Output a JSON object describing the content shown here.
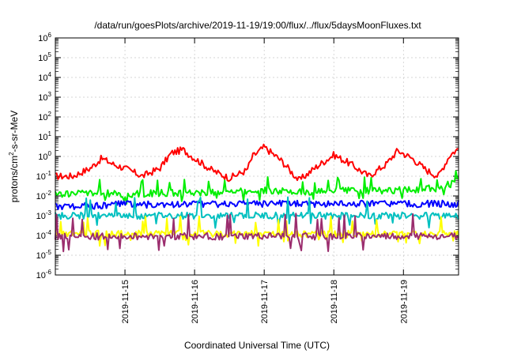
{
  "chart_data": {
    "type": "line",
    "title": "/data/run/goesPlots/archive/2019-11-19/19:00/flux/../flux/5daysMoonFluxes.txt",
    "xlabel": "Coordinated Universal Time (UTC)",
    "ylabel": "protons/cm2-s-sr-MeV",
    "ylabel_parts": [
      "protons/cm",
      "2",
      "-s-sr-MeV"
    ],
    "y_scale": "log",
    "ylim": [
      1e-06,
      1000000
    ],
    "y_tick_exponents": [
      -6,
      -5,
      -4,
      -3,
      -2,
      -1,
      0,
      1,
      2,
      3,
      4,
      5,
      6
    ],
    "y_tick_base": "10",
    "xlim": [
      "2019-11-14 00:00",
      "2019-11-19 19:00"
    ],
    "x_ticks": [
      "2019-11-15",
      "2019-11-16",
      "2019-11-17",
      "2019-11-18",
      "2019-11-19"
    ],
    "grid": true,
    "legend": "none",
    "series": [
      {
        "color": "#ff0000",
        "x": [
          "2019-11-14 00:00",
          "2019-11-14 06:00",
          "2019-11-14 12:00",
          "2019-11-14 16:00",
          "2019-11-14 20:00",
          "2019-11-15 00:00",
          "2019-11-15 06:00",
          "2019-11-15 12:00",
          "2019-11-15 16:00",
          "2019-11-15 20:00",
          "2019-11-16 00:00",
          "2019-11-16 06:00",
          "2019-11-16 12:00",
          "2019-11-16 18:00",
          "2019-11-16 20:00",
          "2019-11-17 00:00",
          "2019-11-17 06:00",
          "2019-11-17 12:00",
          "2019-11-17 18:00",
          "2019-11-18 00:00",
          "2019-11-18 06:00",
          "2019-11-18 12:00",
          "2019-11-18 18:00",
          "2019-11-18 22:00",
          "2019-11-19 03:00",
          "2019-11-19 08:00",
          "2019-11-19 12:00",
          "2019-11-19 16:00",
          "2019-11-19 19:00"
        ],
        "values": [
          0.1,
          0.1,
          0.25,
          0.8,
          0.4,
          0.25,
          0.1,
          0.25,
          1.5,
          2.2,
          0.8,
          0.2,
          0.08,
          0.2,
          1.0,
          3.0,
          0.6,
          0.06,
          0.3,
          1.2,
          0.4,
          0.1,
          0.4,
          2.0,
          0.8,
          0.2,
          0.1,
          1.2,
          2.5
        ]
      },
      {
        "color": "#00ee00",
        "x": [
          "2019-11-14 00:00",
          "2019-11-14 12:00",
          "2019-11-15 00:00",
          "2019-11-15 12:00",
          "2019-11-16 00:00",
          "2019-11-16 12:00",
          "2019-11-17 00:00",
          "2019-11-17 12:00",
          "2019-11-18 00:00",
          "2019-11-18 12:00",
          "2019-11-19 00:00",
          "2019-11-19 12:00",
          "2019-11-19 19:00"
        ],
        "values": [
          0.012,
          0.015,
          0.012,
          0.014,
          0.015,
          0.016,
          0.02,
          0.015,
          0.02,
          0.018,
          0.02,
          0.025,
          0.065
        ]
      },
      {
        "color": "#0000ff",
        "x": [
          "2019-11-14 00:00",
          "2019-11-14 12:00",
          "2019-11-15 00:00",
          "2019-11-15 12:00",
          "2019-11-16 00:00",
          "2019-11-16 12:00",
          "2019-11-17 00:00",
          "2019-11-17 12:00",
          "2019-11-18 00:00",
          "2019-11-18 12:00",
          "2019-11-19 00:00",
          "2019-11-19 12:00",
          "2019-11-19 19:00"
        ],
        "values": [
          0.003,
          0.003,
          0.004,
          0.0035,
          0.004,
          0.004,
          0.004,
          0.004,
          0.004,
          0.004,
          0.004,
          0.004,
          0.004
        ]
      },
      {
        "color": "#00c0c0",
        "x": [
          "2019-11-14 00:00",
          "2019-11-15 00:00",
          "2019-11-16 00:00",
          "2019-11-17 00:00",
          "2019-11-18 00:00",
          "2019-11-19 00:00",
          "2019-11-19 19:00"
        ],
        "values": [
          0.001,
          0.001,
          0.001,
          0.001,
          0.001,
          0.001,
          0.001
        ]
      },
      {
        "color": "#ffff00",
        "x": [
          "2019-11-14 00:00",
          "2019-11-15 00:00",
          "2019-11-16 00:00",
          "2019-11-17 00:00",
          "2019-11-18 00:00",
          "2019-11-19 00:00",
          "2019-11-19 19:00"
        ],
        "values": [
          0.00012,
          0.00012,
          0.00012,
          0.00012,
          0.00012,
          0.00012,
          0.00012
        ]
      },
      {
        "color": "#9b2d6e",
        "x": [
          "2019-11-14 00:00",
          "2019-11-15 00:00",
          "2019-11-16 00:00",
          "2019-11-17 00:00",
          "2019-11-18 00:00",
          "2019-11-19 00:00",
          "2019-11-19 19:00"
        ],
        "values": [
          9e-05,
          9e-05,
          9e-05,
          9e-05,
          9e-05,
          9e-05,
          9e-05
        ]
      }
    ]
  }
}
